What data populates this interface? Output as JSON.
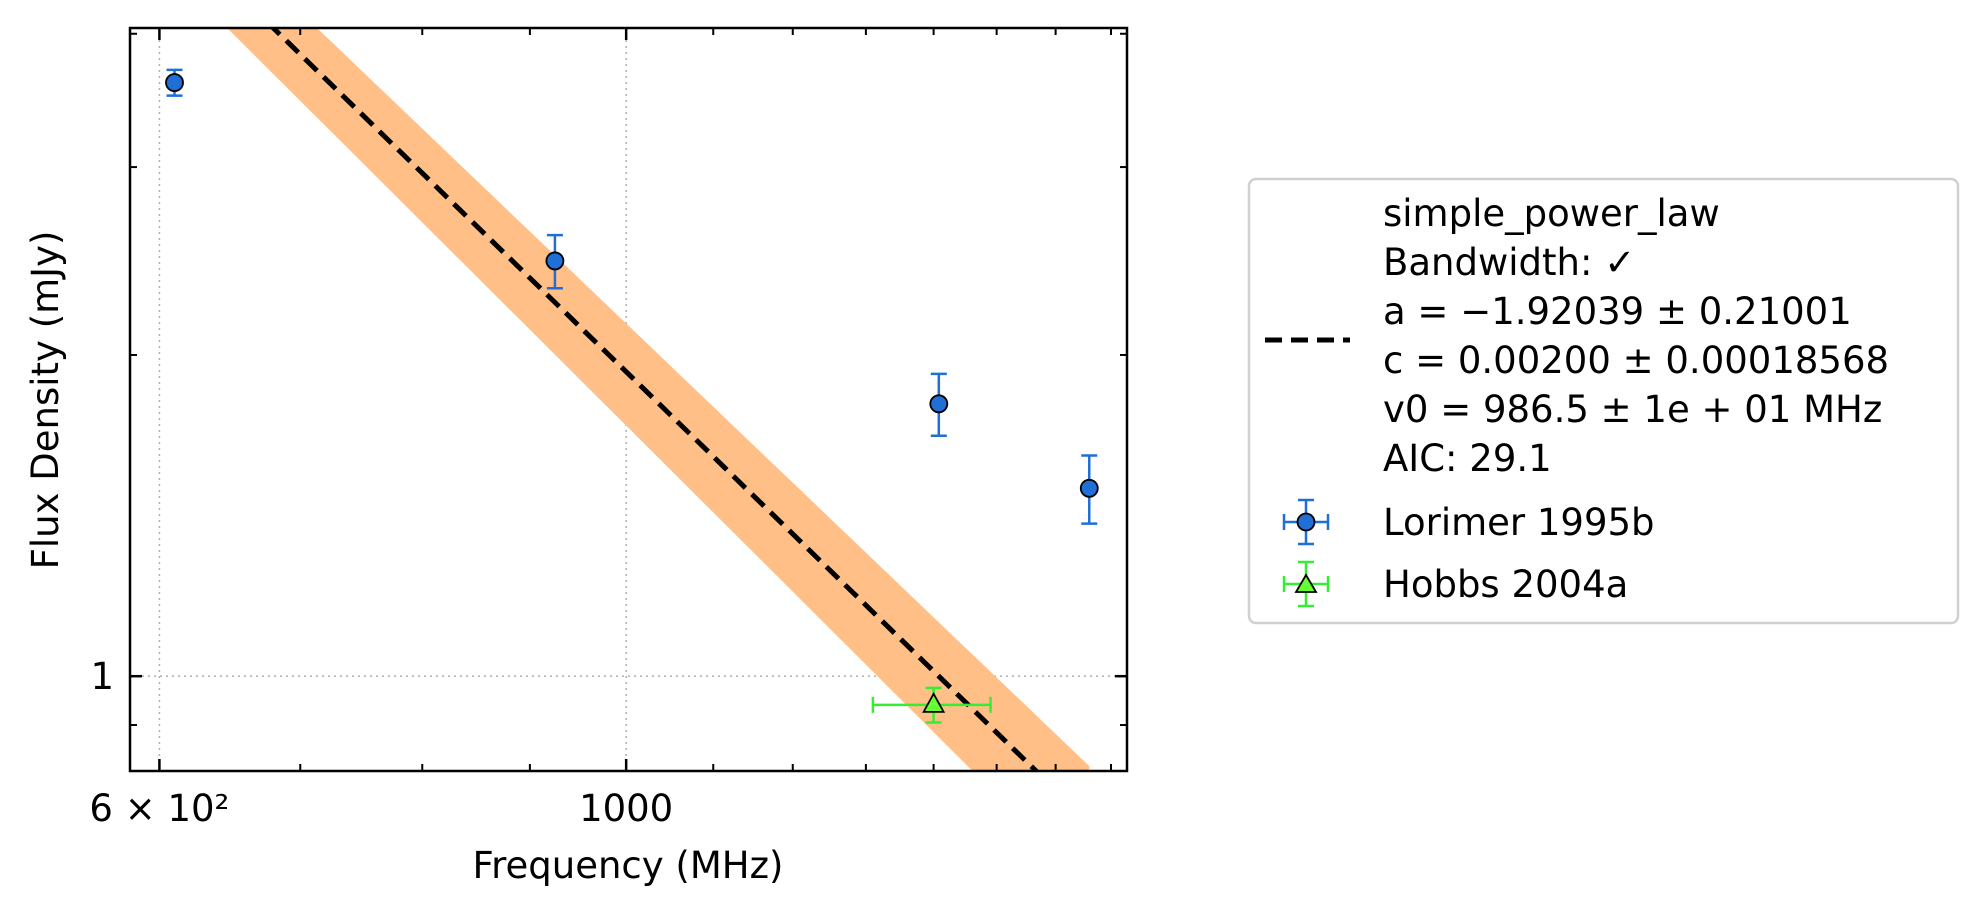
{
  "chart_data": {
    "type": "scatter",
    "xlabel": "Frequency (MHz)",
    "ylabel": "Flux Density (mJy)",
    "x_scale": "log",
    "y_scale": "log",
    "xlim": [
      581,
      1730
    ],
    "ylim": [
      0.815,
      4.05
    ],
    "x_ticks": [
      {
        "value": 600,
        "label": "6 × 10²"
      },
      {
        "value": 1000,
        "label": "1000"
      }
    ],
    "y_ticks": [
      {
        "value": 1,
        "label": "1"
      }
    ],
    "grid": true,
    "legend_position": "right",
    "fit": {
      "model": "simple_power_law",
      "bandwidth": "Bandwidth: ✓",
      "a": "a = −1.92039 ± 0.21001",
      "c": "c = 0.00200 ± 0.00018568",
      "v0": "v0 = 986.5 ± 1e + 01 MHz",
      "aic": "AIC: 29.1",
      "x_range": [
        610,
        1660
      ],
      "a_value": -1.92039,
      "ref_freq": 986.5,
      "ref_flux": 1.98,
      "band_frac_start": 0.09,
      "band_frac_end": 0.13,
      "color_band": "#ffbf86",
      "color_line": "#000000"
    },
    "series": [
      {
        "name": "Lorimer 1995b",
        "marker": "circle",
        "color": "#1f6fd6",
        "err_color": "#1f6fd6",
        "points": [
          {
            "x": 610,
            "y": 3.6,
            "yerr": 0.1,
            "xerr": 0
          },
          {
            "x": 925,
            "y": 2.45,
            "yerr": 0.14,
            "xerr": 0
          },
          {
            "x": 1408,
            "y": 1.8,
            "yerr": 0.12,
            "xerr": 0
          },
          {
            "x": 1660,
            "y": 1.5,
            "yerr": 0.11,
            "xerr": 0
          }
        ]
      },
      {
        "name": "Hobbs 2004a",
        "marker": "triangle",
        "color": "#66ff33",
        "err_color": "#33ee33",
        "points": [
          {
            "x": 1400,
            "y": 0.94,
            "yerr": 0.035,
            "xerr": 90
          }
        ]
      }
    ]
  }
}
